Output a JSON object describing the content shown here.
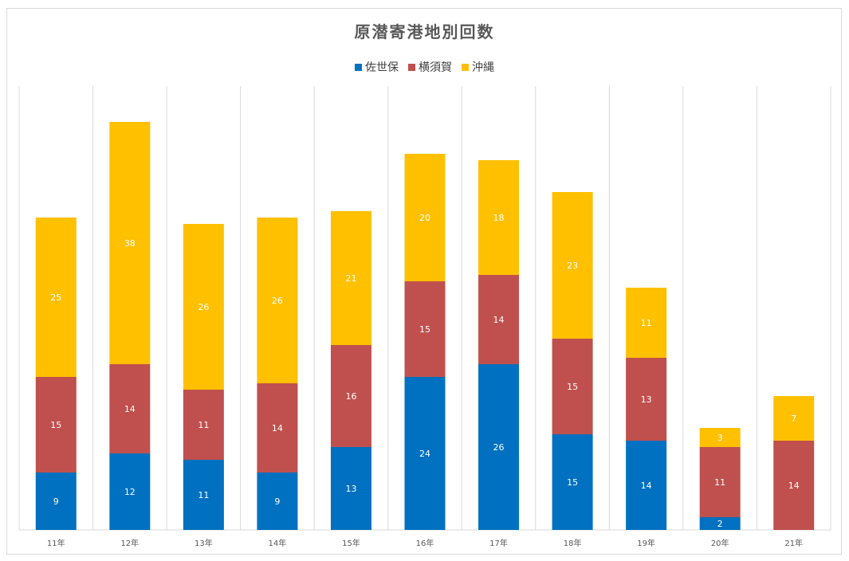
{
  "chart_data": {
    "type": "bar",
    "stacked": true,
    "title": "原潜寄港地別回数",
    "categories": [
      "11年",
      "12年",
      "13年",
      "14年",
      "15年",
      "16年",
      "17年",
      "18年",
      "19年",
      "20年",
      "21年"
    ],
    "series": [
      {
        "name": "佐世保",
        "color": "#0070C0",
        "values": [
          9,
          12,
          11,
          9,
          13,
          24,
          26,
          15,
          14,
          2,
          0
        ]
      },
      {
        "name": "横須賀",
        "color": "#C0504D",
        "values": [
          15,
          14,
          11,
          14,
          16,
          15,
          14,
          15,
          13,
          11,
          14
        ]
      },
      {
        "name": "沖縄",
        "color": "#FFC000",
        "values": [
          25,
          38,
          26,
          26,
          21,
          20,
          18,
          23,
          11,
          3,
          7
        ]
      }
    ],
    "legend_position": "top",
    "gridlines": "vertical-category",
    "data_labels": true
  }
}
